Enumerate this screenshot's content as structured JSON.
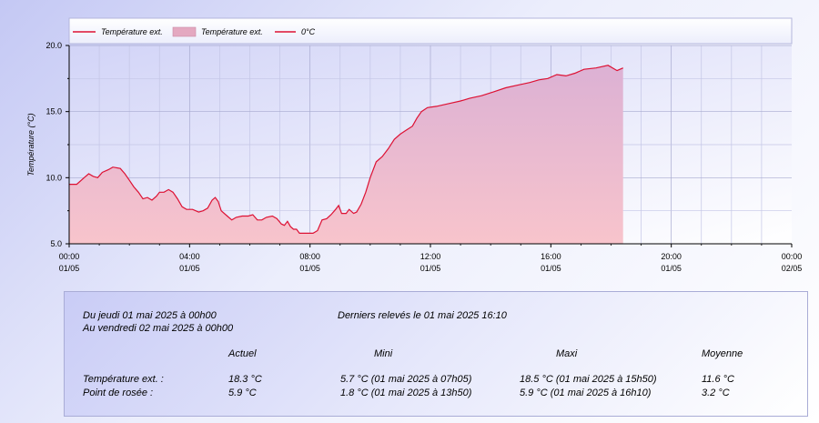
{
  "chart_data": {
    "type": "area",
    "ylabel": "Température (°C)",
    "ylim": [
      5.0,
      20.0
    ],
    "yticks": [
      "5.0",
      "10.0",
      "15.0",
      "20.0"
    ],
    "xtick_times": [
      "00:00",
      "04:00",
      "08:00",
      "12:00",
      "16:00",
      "20:00",
      "00:00"
    ],
    "xtick_dates": [
      "01/05",
      "01/05",
      "01/05",
      "01/05",
      "01/05",
      "01/05",
      "02/05"
    ],
    "xlim_hours": [
      0,
      24
    ],
    "legend": {
      "placement": "top",
      "entries": [
        {
          "label": "Température ext.",
          "kind": "line",
          "color": "#dd1133"
        },
        {
          "label": "Température ext.",
          "kind": "area",
          "color": "#e4a8c0"
        },
        {
          "label": "0°C",
          "kind": "line",
          "color": "#dd1133"
        }
      ]
    },
    "colors": {
      "line": "#dd1133",
      "fill_top": "#dcb1d4",
      "fill_bottom": "#f8c4cc"
    },
    "series": [
      {
        "values": [
          [
            0.0,
            9.5
          ],
          [
            0.25,
            9.5
          ],
          [
            0.5,
            10.0
          ],
          [
            0.65,
            10.3
          ],
          [
            0.8,
            10.1
          ],
          [
            0.95,
            10.0
          ],
          [
            1.1,
            10.4
          ],
          [
            1.3,
            10.6
          ],
          [
            1.45,
            10.8
          ],
          [
            1.7,
            10.7
          ],
          [
            1.85,
            10.3
          ],
          [
            2.0,
            9.8
          ],
          [
            2.15,
            9.3
          ],
          [
            2.3,
            8.9
          ],
          [
            2.45,
            8.4
          ],
          [
            2.6,
            8.5
          ],
          [
            2.75,
            8.3
          ],
          [
            2.9,
            8.6
          ],
          [
            3.0,
            8.9
          ],
          [
            3.15,
            8.9
          ],
          [
            3.3,
            9.1
          ],
          [
            3.45,
            8.9
          ],
          [
            3.6,
            8.4
          ],
          [
            3.75,
            7.8
          ],
          [
            3.9,
            7.6
          ],
          [
            4.1,
            7.6
          ],
          [
            4.3,
            7.4
          ],
          [
            4.45,
            7.5
          ],
          [
            4.6,
            7.7
          ],
          [
            4.75,
            8.3
          ],
          [
            4.85,
            8.5
          ],
          [
            4.95,
            8.2
          ],
          [
            5.05,
            7.5
          ],
          [
            5.25,
            7.1
          ],
          [
            5.4,
            6.8
          ],
          [
            5.55,
            7.0
          ],
          [
            5.75,
            7.1
          ],
          [
            5.95,
            7.1
          ],
          [
            6.1,
            7.2
          ],
          [
            6.25,
            6.8
          ],
          [
            6.4,
            6.8
          ],
          [
            6.55,
            7.0
          ],
          [
            6.75,
            7.1
          ],
          [
            6.9,
            6.9
          ],
          [
            7.05,
            6.5
          ],
          [
            7.15,
            6.4
          ],
          [
            7.25,
            6.7
          ],
          [
            7.35,
            6.3
          ],
          [
            7.45,
            6.1
          ],
          [
            7.55,
            6.1
          ],
          [
            7.65,
            5.8
          ],
          [
            7.8,
            5.8
          ],
          [
            7.95,
            5.8
          ],
          [
            8.1,
            5.8
          ],
          [
            8.25,
            6.0
          ],
          [
            8.4,
            6.8
          ],
          [
            8.55,
            6.9
          ],
          [
            8.7,
            7.2
          ],
          [
            8.85,
            7.6
          ],
          [
            8.95,
            7.9
          ],
          [
            9.05,
            7.3
          ],
          [
            9.2,
            7.3
          ],
          [
            9.3,
            7.6
          ],
          [
            9.45,
            7.3
          ],
          [
            9.55,
            7.4
          ],
          [
            9.7,
            8.0
          ],
          [
            9.85,
            8.9
          ],
          [
            10.0,
            10.0
          ],
          [
            10.2,
            11.2
          ],
          [
            10.4,
            11.6
          ],
          [
            10.6,
            12.2
          ],
          [
            10.8,
            12.9
          ],
          [
            11.0,
            13.3
          ],
          [
            11.2,
            13.6
          ],
          [
            11.4,
            13.9
          ],
          [
            11.55,
            14.5
          ],
          [
            11.7,
            15.0
          ],
          [
            11.9,
            15.3
          ],
          [
            12.2,
            15.4
          ],
          [
            12.6,
            15.6
          ],
          [
            13.0,
            15.8
          ],
          [
            13.3,
            16.0
          ],
          [
            13.7,
            16.2
          ],
          [
            14.1,
            16.5
          ],
          [
            14.5,
            16.8
          ],
          [
            14.9,
            17.0
          ],
          [
            15.3,
            17.2
          ],
          [
            15.6,
            17.4
          ],
          [
            15.9,
            17.5
          ],
          [
            16.2,
            17.8
          ],
          [
            16.5,
            17.7
          ],
          [
            16.8,
            17.9
          ],
          [
            17.1,
            18.2
          ],
          [
            17.5,
            18.3
          ],
          [
            17.9,
            18.5
          ],
          [
            18.2,
            18.1
          ],
          [
            18.4,
            18.3
          ]
        ]
      }
    ]
  },
  "summary": {
    "period_from": "Du jeudi 01 mai 2025 à 00h00",
    "period_to": "Au vendredi 02 mai 2025 à 00h00",
    "last_reading": "Derniers relevés le 01 mai 2025 16:10",
    "headers": [
      "Actuel",
      "Mini",
      "Maxi",
      "Moyenne"
    ],
    "rows": [
      {
        "label": "Température ext. :",
        "actuel": "18.3 °C",
        "mini": "5.7 °C (01 mai 2025 à 07h05)",
        "maxi": "18.5 °C (01 mai 2025 à 15h50)",
        "moyenne": "11.6 °C"
      },
      {
        "label": "Point de rosée :",
        "actuel": "5.9 °C",
        "mini": "1.8 °C (01 mai 2025 à 13h50)",
        "maxi": "5.9 °C (01 mai 2025 à 16h10)",
        "moyenne": "3.2 °C"
      }
    ]
  }
}
